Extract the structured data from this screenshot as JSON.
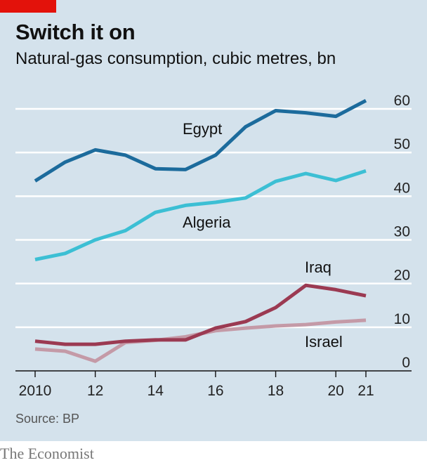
{
  "header": {
    "title": "Switch it on",
    "subtitle": "Natural-gas consumption, cubic metres, bn"
  },
  "footer": {
    "source": "Source: BP",
    "brand": "The Economist"
  },
  "colors": {
    "panel": "#d4e2ec",
    "accent": "#e3120b",
    "Egypt": "#1c6b9c",
    "Algeria": "#3cbfd4",
    "Iraq": "#9b3a52",
    "Israel": "#c49aa7"
  },
  "chart_data": {
    "type": "line",
    "title": "Switch it on",
    "subtitle": "Natural-gas consumption, cubic metres, bn",
    "x": [
      2010,
      2011,
      2012,
      2013,
      2014,
      2015,
      2016,
      2017,
      2018,
      2019,
      2020,
      2021
    ],
    "x_tick_values": [
      2010,
      2012,
      2014,
      2016,
      2018,
      2020,
      2021
    ],
    "x_tick_labels": [
      "2010",
      "12",
      "14",
      "16",
      "18",
      "20",
      "21"
    ],
    "y_tick_values": [
      0,
      10,
      20,
      30,
      40,
      50,
      60
    ],
    "y_tick_labels": [
      "0",
      "10",
      "20",
      "30",
      "40",
      "50",
      "60"
    ],
    "xlim": [
      2010,
      2021
    ],
    "ylim": [
      0,
      60
    ],
    "grid": true,
    "y_axis_side": "right",
    "series": [
      {
        "name": "Egypt",
        "values": [
          43.5,
          47.8,
          50.6,
          49.4,
          46.3,
          46.1,
          49.4,
          55.9,
          59.6,
          59.1,
          58.3,
          61.9
        ]
      },
      {
        "name": "Algeria",
        "values": [
          25.5,
          26.9,
          30.0,
          32.1,
          36.3,
          37.9,
          38.6,
          39.6,
          43.4,
          45.2,
          43.6,
          45.8
        ]
      },
      {
        "name": "Iraq",
        "values": [
          6.8,
          6.1,
          6.1,
          6.8,
          7.1,
          7.1,
          9.8,
          11.3,
          14.5,
          19.6,
          18.6,
          17.2
        ]
      },
      {
        "name": "Israel",
        "values": [
          5.0,
          4.5,
          2.2,
          6.5,
          7.0,
          7.8,
          9.2,
          9.8,
          10.3,
          10.6,
          11.2,
          11.6
        ]
      }
    ]
  }
}
